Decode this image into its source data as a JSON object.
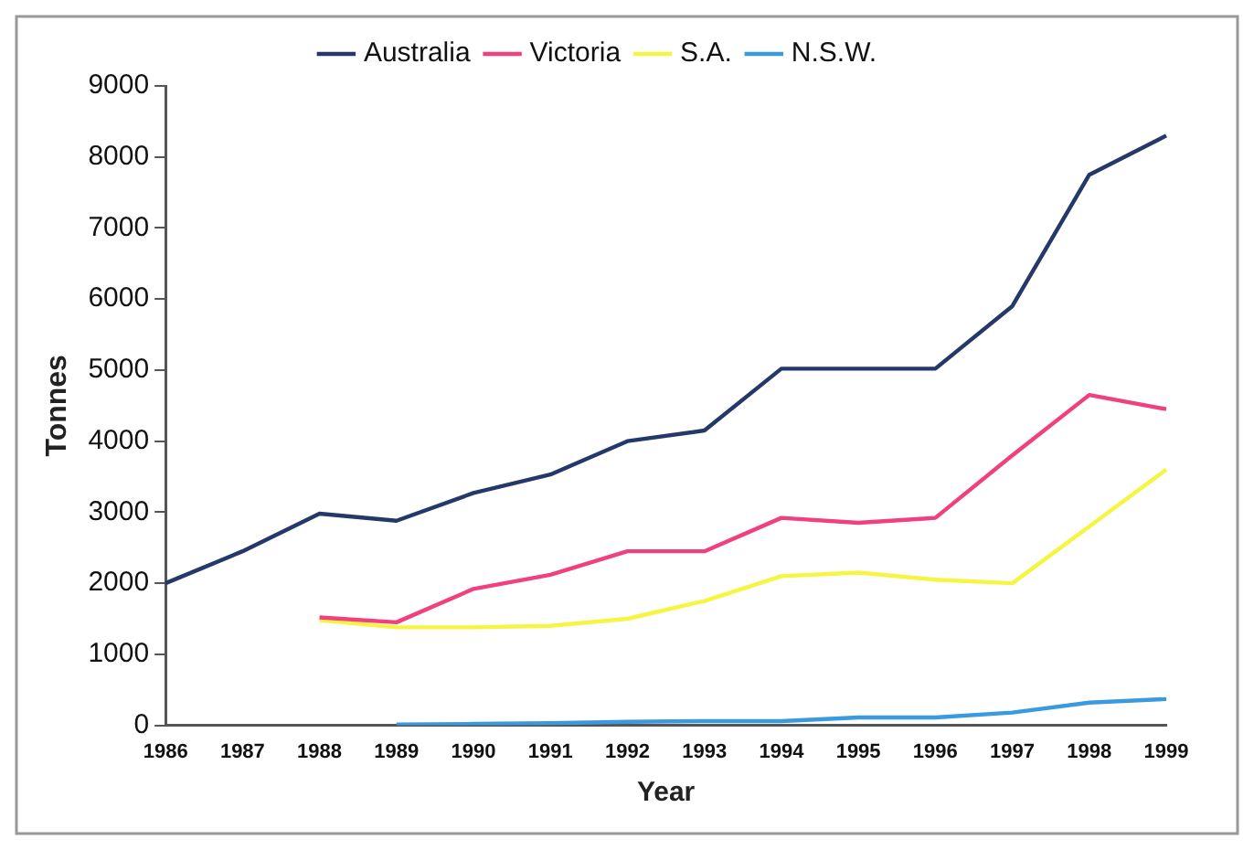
{
  "chart_data": {
    "type": "line",
    "xlabel": "Year",
    "ylabel": "Tonnes",
    "categories": [
      "1986",
      "1987",
      "1988",
      "1989",
      "1990",
      "1991",
      "1992",
      "1993",
      "1994",
      "1995",
      "1996",
      "1997",
      "1998",
      "1999"
    ],
    "series": [
      {
        "name": "Australia",
        "color": "#24386a",
        "values": [
          2000,
          2450,
          2980,
          2880,
          3270,
          3530,
          4000,
          4150,
          5020,
          5020,
          5020,
          5900,
          7750,
          8300
        ]
      },
      {
        "name": "Victoria",
        "color": "#f0407f",
        "values": [
          null,
          null,
          1520,
          1450,
          1920,
          2120,
          2450,
          2450,
          2920,
          2850,
          2920,
          3800,
          4650,
          4450
        ]
      },
      {
        "name": "S.A.",
        "color": "#f5f542",
        "values": [
          null,
          null,
          1480,
          1380,
          1380,
          1400,
          1500,
          1750,
          2100,
          2150,
          2050,
          2000,
          2800,
          3600
        ]
      },
      {
        "name": "N.S.W.",
        "color": "#3a9ae0",
        "values": [
          null,
          null,
          null,
          10,
          20,
          30,
          50,
          60,
          60,
          110,
          110,
          180,
          320,
          370
        ]
      }
    ],
    "ylim": [
      0,
      9000
    ],
    "yticks": [
      0,
      1000,
      2000,
      3000,
      4000,
      5000,
      6000,
      7000,
      8000,
      9000
    ],
    "grid": false,
    "legend": "top",
    "marker": "none",
    "line_style": "solid"
  }
}
